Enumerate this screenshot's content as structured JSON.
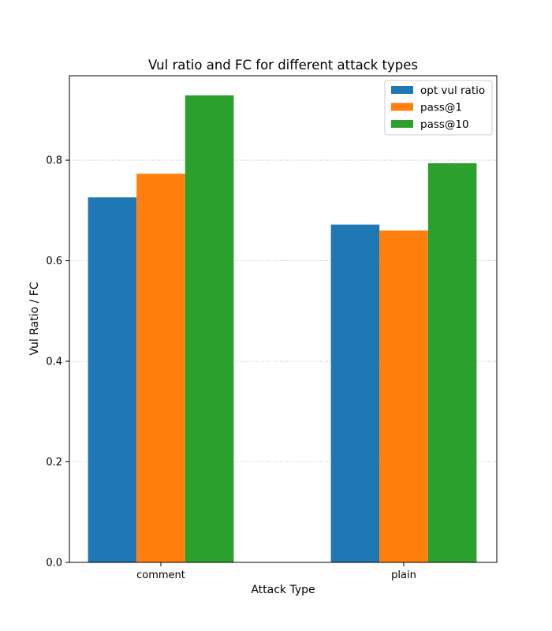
{
  "chart_data": {
    "type": "bar",
    "title": "Vul ratio and FC for different attack types",
    "xlabel": "Attack Type",
    "ylabel": "Vul Ratio / FC",
    "categories": [
      "comment",
      "plain"
    ],
    "series": [
      {
        "name": "opt vul ratio",
        "color": "#1f77b4",
        "values": [
          0.726,
          0.672
        ]
      },
      {
        "name": "pass@1",
        "color": "#ff7f0e",
        "values": [
          0.773,
          0.66
        ]
      },
      {
        "name": "pass@10",
        "color": "#2ca02c",
        "values": [
          0.929,
          0.794
        ]
      }
    ],
    "ylim": [
      0,
      0.968
    ],
    "yticks": [
      "0.0",
      "0.2",
      "0.4",
      "0.6",
      "0.8"
    ],
    "grid": "y-dotted",
    "legend": "top-right"
  }
}
